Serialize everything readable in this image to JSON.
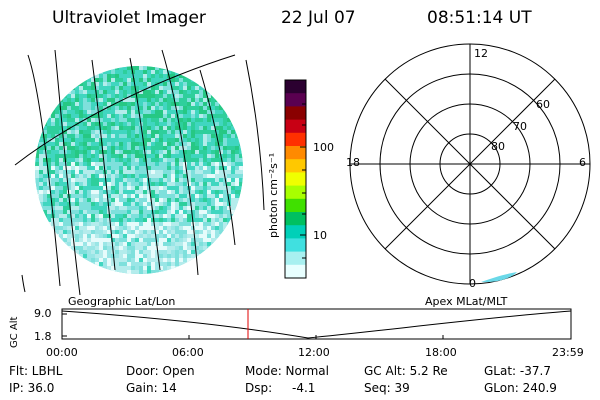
{
  "header": {
    "title": "Ultraviolet Imager",
    "date": "22 Jul 07",
    "time": "08:51:14 UT"
  },
  "colorbar": {
    "unit_label": "photon cm⁻²s⁻¹",
    "ticks": [
      "100",
      "10"
    ],
    "colors": [
      "#2b0030",
      "#5a0050",
      "#8a0000",
      "#c80014",
      "#ff3000",
      "#ff8a00",
      "#ffc800",
      "#f0ff00",
      "#a8ff00",
      "#40e000",
      "#00c060",
      "#00d0b8",
      "#40e0e0",
      "#a8f0f0",
      "#e8ffff"
    ]
  },
  "polar_plot": {
    "mlt_labels": [
      "12",
      "18",
      "6",
      "0"
    ],
    "lat_labels": [
      "60",
      "70",
      "80"
    ]
  },
  "timeline": {
    "left_caption": "Geographic Lat/Lon",
    "right_caption": "Apex MLat/MLT",
    "axis_label": "GC Alt",
    "y_ticks": [
      "9.0",
      "1.8"
    ],
    "x_ticks": [
      "00:00",
      "06:00",
      "12:00",
      "18:00",
      "23:59"
    ]
  },
  "status": {
    "filter": "Flt: LBHL",
    "ip": "IP: 36.0",
    "door": "Door: Open",
    "gain": "Gain: 14",
    "mode": "Mode: Normal",
    "dsp_label": "Dsp:",
    "dsp_value": "-4.1",
    "gc_alt": "GC Alt: 5.2 Re",
    "seq": "Seq: 39",
    "glat": "GLat: -37.7",
    "glon": "GLon: 240.9"
  }
}
